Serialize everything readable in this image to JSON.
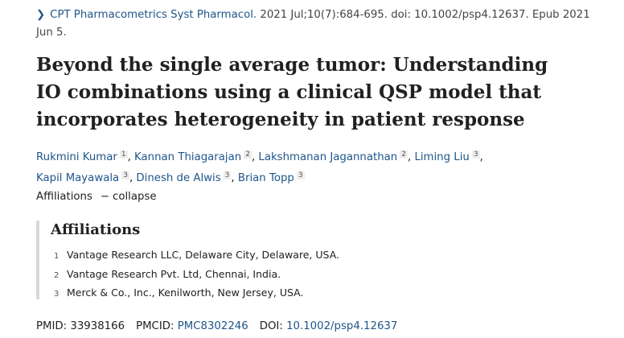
{
  "citation": {
    "journal": "CPT Pharmacometrics Syst Pharmacol.",
    "details": " 2021 Jul;10(7):684-695. doi: 10.1002/psp4.12637. Epub 2021 Jun 5."
  },
  "title": "Beyond the single average tumor: Understanding IO combinations using a clinical QSP model that incorporates heterogeneity in patient response",
  "authors": [
    {
      "name": "Rukmini Kumar",
      "aff": "1"
    },
    {
      "name": "Kannan Thiagarajan",
      "aff": "2"
    },
    {
      "name": "Lakshmanan Jagannathan",
      "aff": "2"
    },
    {
      "name": "Liming Liu",
      "aff": "3"
    },
    {
      "name": "Kapil Mayawala",
      "aff": "3"
    },
    {
      "name": "Dinesh de Alwis",
      "aff": "3"
    },
    {
      "name": "Brian Topp",
      "aff": "3"
    }
  ],
  "affiliations_toggle": {
    "label": "Affiliations",
    "action": "collapse",
    "dash": "−"
  },
  "affiliations": {
    "heading": "Affiliations",
    "items": [
      {
        "num": "1",
        "text": "Vantage Research LLC, Delaware City, Delaware, USA."
      },
      {
        "num": "2",
        "text": "Vantage Research Pvt. Ltd, Chennai, India."
      },
      {
        "num": "3",
        "text": "Merck & Co., Inc., Kenilworth, New Jersey, USA."
      }
    ]
  },
  "ids": {
    "pmid_label": "PMID:",
    "pmid": "33938166",
    "pmcid_label": "PMCID:",
    "pmcid": "PMC8302246",
    "doi_label": "DOI:",
    "doi": "10.1002/psp4.12637"
  }
}
